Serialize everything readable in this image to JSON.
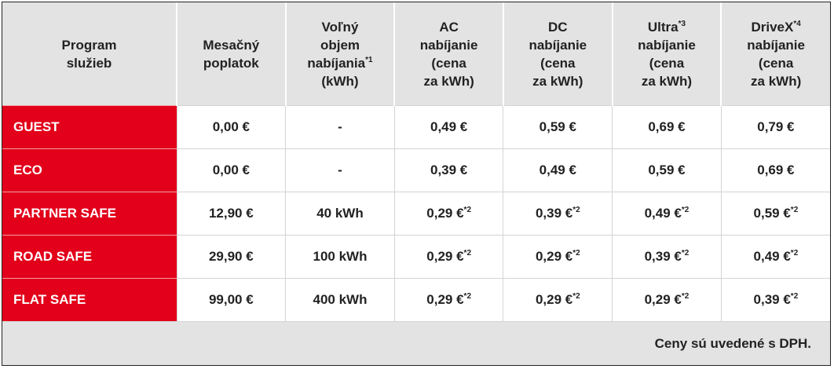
{
  "table": {
    "header": [
      [
        {
          "text": "Program"
        },
        {
          "text": "služieb"
        }
      ],
      [
        {
          "text": "Mesačný"
        },
        {
          "text": "poplatok"
        }
      ],
      [
        {
          "text": "Voľný"
        },
        {
          "text": "objem"
        },
        {
          "text": "nabíjania",
          "sup": "*1"
        },
        {
          "text": "(kWh)"
        }
      ],
      [
        {
          "text": "AC"
        },
        {
          "text": "nabíjanie"
        },
        {
          "text": "(cena"
        },
        {
          "text": "za kWh)"
        }
      ],
      [
        {
          "text": "DC"
        },
        {
          "text": "nabíjanie"
        },
        {
          "text": "(cena"
        },
        {
          "text": "za kWh)"
        }
      ],
      [
        {
          "text": "Ultra",
          "sup": "*3"
        },
        {
          "text": "nabíjanie"
        },
        {
          "text": "(cena"
        },
        {
          "text": "za kWh)"
        }
      ],
      [
        {
          "text": "DriveX",
          "sup": "*4"
        },
        {
          "text": "nabíjanie"
        },
        {
          "text": "(cena"
        },
        {
          "text": "za kWh)"
        }
      ]
    ],
    "rows": [
      [
        {
          "text": "GUEST"
        },
        {
          "text": "0,00 €"
        },
        {
          "text": "-"
        },
        {
          "text": "0,49 €"
        },
        {
          "text": "0,59 €"
        },
        {
          "text": "0,69 €"
        },
        {
          "text": "0,79 €"
        }
      ],
      [
        {
          "text": "ECO"
        },
        {
          "text": "0,00 €"
        },
        {
          "text": "-"
        },
        {
          "text": "0,39 €"
        },
        {
          "text": "0,49 €"
        },
        {
          "text": "0,59 €"
        },
        {
          "text": "0,69 €"
        }
      ],
      [
        {
          "text": "PARTNER SAFE"
        },
        {
          "text": "12,90 €"
        },
        {
          "text": "40 kWh"
        },
        {
          "text": "0,29 €",
          "sup": "*2"
        },
        {
          "text": "0,39 €",
          "sup": "*2"
        },
        {
          "text": "0,49 €",
          "sup": "*2"
        },
        {
          "text": "0,59 €",
          "sup": "*2"
        }
      ],
      [
        {
          "text": "ROAD SAFE"
        },
        {
          "text": "29,90 €"
        },
        {
          "text": "100 kWh"
        },
        {
          "text": "0,29 €",
          "sup": "*2"
        },
        {
          "text": "0,29 €",
          "sup": "*2"
        },
        {
          "text": "0,39 €",
          "sup": "*2"
        },
        {
          "text": "0,49 €",
          "sup": "*2"
        }
      ],
      [
        {
          "text": "FLAT SAFE"
        },
        {
          "text": "99,00 €"
        },
        {
          "text": "400 kWh"
        },
        {
          "text": "0,29 €",
          "sup": "*2"
        },
        {
          "text": "0,29 €",
          "sup": "*2"
        },
        {
          "text": "0,29 €",
          "sup": "*2"
        },
        {
          "text": "0,39 €",
          "sup": "*2"
        }
      ]
    ],
    "footer": "Ceny sú uvedené s DPH."
  }
}
